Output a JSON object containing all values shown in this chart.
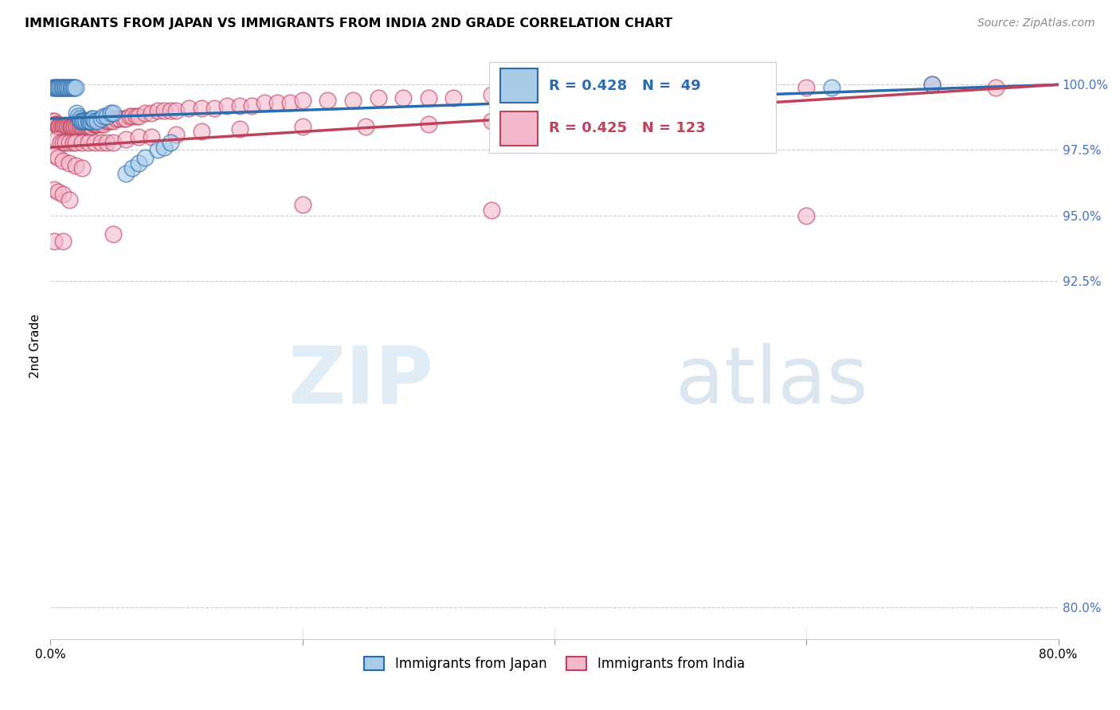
{
  "title": "IMMIGRANTS FROM JAPAN VS IMMIGRANTS FROM INDIA 2ND GRADE CORRELATION CHART",
  "source": "Source: ZipAtlas.com",
  "ylabel": "2nd Grade",
  "ytick_values": [
    0.8,
    0.925,
    0.95,
    0.975,
    1.0
  ],
  "xlim": [
    0.0,
    0.8
  ],
  "ylim": [
    0.788,
    1.012
  ],
  "legend_japan_R": "0.428",
  "legend_japan_N": "49",
  "legend_india_R": "0.425",
  "legend_india_N": "123",
  "color_japan": "#a8cce8",
  "color_india": "#f4b8cc",
  "trendline_japan": "#2b6cb0",
  "trendline_india": "#c0415a",
  "watermark_zip": "ZIP",
  "watermark_atlas": "atlas",
  "japan_x": [
    0.002,
    0.003,
    0.004,
    0.005,
    0.005,
    0.006,
    0.007,
    0.008,
    0.009,
    0.01,
    0.011,
    0.012,
    0.013,
    0.014,
    0.015,
    0.016,
    0.017,
    0.018,
    0.019,
    0.02,
    0.021,
    0.022,
    0.023,
    0.024,
    0.025,
    0.026,
    0.027,
    0.028,
    0.03,
    0.031,
    0.032,
    0.033,
    0.034,
    0.035,
    0.037,
    0.04,
    0.042,
    0.045,
    0.048,
    0.05,
    0.06,
    0.065,
    0.07,
    0.075,
    0.085,
    0.09,
    0.095,
    0.62,
    0.7
  ],
  "japan_y": [
    0.999,
    0.999,
    0.999,
    0.999,
    0.999,
    0.999,
    0.999,
    0.999,
    0.999,
    0.999,
    0.999,
    0.999,
    0.999,
    0.999,
    0.999,
    0.999,
    0.999,
    0.999,
    0.999,
    0.999,
    0.989,
    0.988,
    0.987,
    0.986,
    0.986,
    0.986,
    0.986,
    0.986,
    0.986,
    0.986,
    0.986,
    0.987,
    0.987,
    0.986,
    0.986,
    0.987,
    0.988,
    0.988,
    0.989,
    0.989,
    0.966,
    0.968,
    0.97,
    0.972,
    0.975,
    0.976,
    0.978,
    0.999,
    1.0
  ],
  "india_x": [
    0.002,
    0.003,
    0.004,
    0.005,
    0.006,
    0.007,
    0.007,
    0.008,
    0.009,
    0.01,
    0.01,
    0.011,
    0.012,
    0.013,
    0.014,
    0.015,
    0.016,
    0.016,
    0.017,
    0.018,
    0.019,
    0.02,
    0.021,
    0.022,
    0.023,
    0.024,
    0.025,
    0.026,
    0.027,
    0.028,
    0.029,
    0.03,
    0.031,
    0.032,
    0.033,
    0.034,
    0.035,
    0.036,
    0.037,
    0.038,
    0.04,
    0.042,
    0.044,
    0.046,
    0.048,
    0.05,
    0.052,
    0.055,
    0.058,
    0.06,
    0.063,
    0.065,
    0.068,
    0.07,
    0.075,
    0.08,
    0.085,
    0.09,
    0.095,
    0.1,
    0.11,
    0.12,
    0.13,
    0.14,
    0.15,
    0.16,
    0.17,
    0.18,
    0.19,
    0.2,
    0.22,
    0.24,
    0.26,
    0.28,
    0.3,
    0.32,
    0.35,
    0.38,
    0.4,
    0.45,
    0.005,
    0.008,
    0.01,
    0.012,
    0.015,
    0.018,
    0.02,
    0.025,
    0.03,
    0.035,
    0.04,
    0.045,
    0.05,
    0.06,
    0.07,
    0.08,
    0.1,
    0.12,
    0.15,
    0.2,
    0.25,
    0.3,
    0.35,
    0.4,
    0.6,
    0.7,
    0.75,
    0.003,
    0.006,
    0.01,
    0.015,
    0.02,
    0.025,
    0.003,
    0.006,
    0.01,
    0.015,
    0.2,
    0.35,
    0.6,
    0.003,
    0.01,
    0.05
  ],
  "india_y": [
    0.986,
    0.986,
    0.985,
    0.985,
    0.984,
    0.984,
    0.984,
    0.984,
    0.984,
    0.984,
    0.984,
    0.984,
    0.984,
    0.984,
    0.984,
    0.984,
    0.984,
    0.984,
    0.984,
    0.984,
    0.984,
    0.984,
    0.984,
    0.984,
    0.984,
    0.984,
    0.984,
    0.984,
    0.984,
    0.984,
    0.984,
    0.984,
    0.984,
    0.984,
    0.984,
    0.985,
    0.985,
    0.985,
    0.985,
    0.985,
    0.985,
    0.985,
    0.986,
    0.986,
    0.986,
    0.986,
    0.987,
    0.987,
    0.987,
    0.987,
    0.988,
    0.988,
    0.988,
    0.988,
    0.989,
    0.989,
    0.99,
    0.99,
    0.99,
    0.99,
    0.991,
    0.991,
    0.991,
    0.992,
    0.992,
    0.992,
    0.993,
    0.993,
    0.993,
    0.994,
    0.994,
    0.994,
    0.995,
    0.995,
    0.995,
    0.995,
    0.996,
    0.996,
    0.996,
    0.997,
    0.979,
    0.978,
    0.978,
    0.978,
    0.978,
    0.978,
    0.978,
    0.978,
    0.978,
    0.978,
    0.978,
    0.978,
    0.978,
    0.979,
    0.98,
    0.98,
    0.981,
    0.982,
    0.983,
    0.984,
    0.984,
    0.985,
    0.986,
    0.987,
    0.999,
    1.0,
    0.999,
    0.973,
    0.972,
    0.971,
    0.97,
    0.969,
    0.968,
    0.96,
    0.959,
    0.958,
    0.956,
    0.954,
    0.952,
    0.95,
    0.94,
    0.94,
    0.943
  ],
  "japan_trendline_x": [
    0.0,
    0.8
  ],
  "japan_trendline_y": [
    0.987,
    1.0
  ],
  "india_trendline_x": [
    0.0,
    0.8
  ],
  "india_trendline_y": [
    0.976,
    1.0
  ]
}
